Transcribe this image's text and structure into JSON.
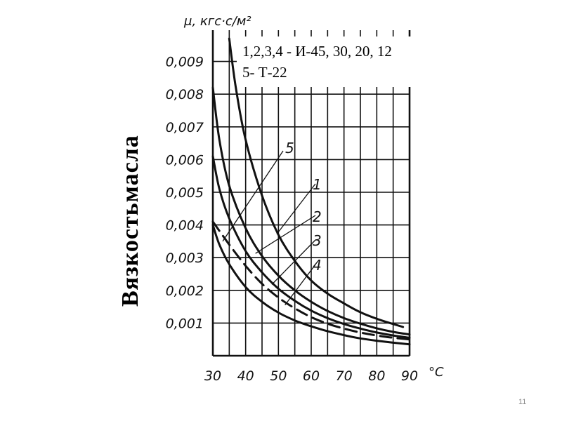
{
  "chart_data": {
    "type": "line",
    "title": "",
    "xlabel": "°C",
    "ylabel": "Вязкостьмасла",
    "yunit": "μ, кгс·с/м²",
    "xlim": [
      30,
      90
    ],
    "ylim": [
      0,
      0.0097
    ],
    "grid": true,
    "xticks": [
      "30",
      "40",
      "50",
      "60",
      "70",
      "80",
      "90"
    ],
    "yticks": [
      "0,001",
      "0,002",
      "0,003",
      "0,004",
      "0,005",
      "0,006",
      "0,007",
      "0,008",
      "0,009"
    ],
    "legend_lines": [
      "1,2,3,4  - И-45, 30, 20, 12",
      "5- Т-22"
    ],
    "series": [
      {
        "name": "1",
        "dashed": false,
        "x": [
          35,
          37,
          40,
          45,
          50,
          55,
          60,
          65,
          70,
          75,
          80,
          85,
          88
        ],
        "y": [
          0.0097,
          0.0082,
          0.0066,
          0.0049,
          0.0037,
          0.0029,
          0.0023,
          0.0019,
          0.0016,
          0.00133,
          0.00113,
          0.00097,
          0.00088
        ]
      },
      {
        "name": "2",
        "dashed": false,
        "x": [
          30,
          32,
          35,
          40,
          45,
          50,
          55,
          60,
          65,
          70,
          75,
          80,
          85,
          90
        ],
        "y": [
          0.0082,
          0.0066,
          0.0052,
          0.0039,
          0.00305,
          0.00245,
          0.002,
          0.00165,
          0.00137,
          0.00115,
          0.00098,
          0.00084,
          0.00073,
          0.00065
        ]
      },
      {
        "name": "3",
        "dashed": false,
        "x": [
          30,
          32,
          35,
          40,
          45,
          50,
          55,
          60,
          65,
          70,
          75,
          80,
          85,
          90
        ],
        "y": [
          0.0061,
          0.0051,
          0.0042,
          0.0032,
          0.00255,
          0.00205,
          0.00168,
          0.00138,
          0.00115,
          0.00097,
          0.00083,
          0.00071,
          0.00062,
          0.00055
        ]
      },
      {
        "name": "4",
        "dashed": false,
        "x": [
          30,
          32,
          35,
          40,
          45,
          50,
          55,
          60,
          65,
          70,
          75,
          80,
          85,
          90
        ],
        "y": [
          0.004,
          0.0034,
          0.0028,
          0.0021,
          0.00165,
          0.00132,
          0.00108,
          0.0009,
          0.00075,
          0.00063,
          0.00053,
          0.00046,
          0.0004,
          0.00035
        ]
      },
      {
        "name": "5",
        "dashed": true,
        "x": [
          30,
          35,
          40,
          45,
          50,
          55,
          60,
          65,
          70,
          75,
          80,
          85,
          90
        ],
        "y": [
          0.0041,
          0.0034,
          0.00275,
          0.0022,
          0.00178,
          0.00145,
          0.00118,
          0.00098,
          0.00083,
          0.00071,
          0.00062,
          0.00055,
          0.0005
        ]
      }
    ]
  },
  "slide": {
    "page_number": "11"
  }
}
